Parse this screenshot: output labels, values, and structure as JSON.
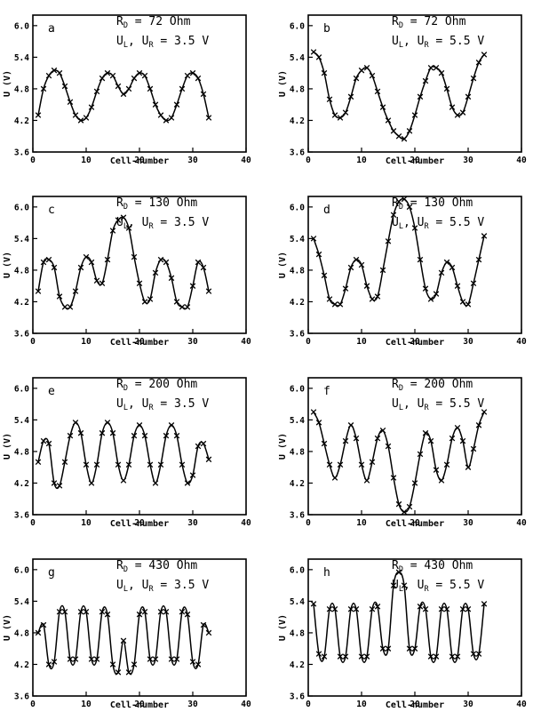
{
  "chart_data": [
    {
      "type": "line",
      "panel": "a",
      "annotation": {
        "r_prefix": "R",
        "r_sub": "D",
        "r_value": "= 72 Ohm",
        "u_prefix": "U",
        "u_sub1": "L",
        "u_sep": ", U",
        "u_sub2": "R",
        "u_value": "= 3.5 V"
      },
      "xlabel": "Cell-number",
      "ylabel": "U (V)",
      "xlim": [
        0,
        40
      ],
      "ylim": [
        3.6,
        6.2
      ],
      "xticks": [
        0,
        10,
        20,
        30,
        40
      ],
      "yticks": [
        3.6,
        4.2,
        4.8,
        5.4,
        6.0
      ],
      "series": [
        {
          "x": [
            1,
            2,
            3,
            4,
            5,
            6,
            7,
            8,
            9,
            10,
            11,
            12,
            13,
            14,
            15,
            16,
            17,
            18,
            19,
            20,
            21,
            22,
            23,
            24,
            25,
            26,
            27,
            28,
            29,
            30,
            31,
            32,
            33
          ],
          "y": [
            4.3,
            4.8,
            5.05,
            5.15,
            5.1,
            4.85,
            4.55,
            4.3,
            4.2,
            4.25,
            4.45,
            4.75,
            5.0,
            5.1,
            5.05,
            4.85,
            4.7,
            4.8,
            5.0,
            5.1,
            5.05,
            4.8,
            4.5,
            4.3,
            4.2,
            4.25,
            4.5,
            4.8,
            5.05,
            5.1,
            5.0,
            4.7,
            4.25
          ]
        }
      ]
    },
    {
      "type": "line",
      "panel": "b",
      "annotation": {
        "r_prefix": "R",
        "r_sub": "D",
        "r_value": "= 72 Ohm",
        "u_prefix": "U",
        "u_sub1": "L",
        "u_sep": ", U",
        "u_sub2": "R",
        "u_value": "= 5.5 V"
      },
      "xlabel": "Cell-number",
      "ylabel": "U (V)",
      "xlim": [
        0,
        40
      ],
      "ylim": [
        3.6,
        6.2
      ],
      "xticks": [
        0,
        10,
        20,
        30,
        40
      ],
      "yticks": [
        3.6,
        4.2,
        4.8,
        5.4,
        6.0
      ],
      "series": [
        {
          "x": [
            1,
            2,
            3,
            4,
            5,
            6,
            7,
            8,
            9,
            10,
            11,
            12,
            13,
            14,
            15,
            16,
            17,
            18,
            19,
            20,
            21,
            22,
            23,
            24,
            25,
            26,
            27,
            28,
            29,
            30,
            31,
            32,
            33
          ],
          "y": [
            5.5,
            5.4,
            5.1,
            4.6,
            4.3,
            4.25,
            4.35,
            4.65,
            5.0,
            5.15,
            5.2,
            5.05,
            4.75,
            4.45,
            4.2,
            4.0,
            3.9,
            3.85,
            4.0,
            4.3,
            4.65,
            4.95,
            5.2,
            5.2,
            5.1,
            4.8,
            4.45,
            4.3,
            4.35,
            4.65,
            5.0,
            5.3,
            5.45
          ]
        }
      ]
    },
    {
      "type": "line",
      "panel": "c",
      "annotation": {
        "r_prefix": "R",
        "r_sub": "D",
        "r_value": "= 130 Ohm",
        "u_prefix": "U",
        "u_sub1": "L",
        "u_sep": ", U",
        "u_sub2": "R",
        "u_value": "= 3.5 V"
      },
      "xlabel": "Cell-number",
      "ylabel": "U (V)",
      "xlim": [
        0,
        40
      ],
      "ylim": [
        3.6,
        6.2
      ],
      "xticks": [
        0,
        10,
        20,
        30,
        40
      ],
      "yticks": [
        3.6,
        4.2,
        4.8,
        5.4,
        6.0
      ],
      "series": [
        {
          "x": [
            1,
            2,
            3,
            4,
            5,
            6,
            7,
            8,
            9,
            10,
            11,
            12,
            13,
            14,
            15,
            16,
            17,
            18,
            19,
            20,
            21,
            22,
            23,
            24,
            25,
            26,
            27,
            28,
            29,
            30,
            31,
            32,
            33
          ],
          "y": [
            4.4,
            4.95,
            5.0,
            4.85,
            4.3,
            4.1,
            4.1,
            4.4,
            4.85,
            5.05,
            4.95,
            4.6,
            4.55,
            5.0,
            5.55,
            5.75,
            5.8,
            5.6,
            5.05,
            4.55,
            4.2,
            4.25,
            4.75,
            5.0,
            4.95,
            4.65,
            4.2,
            4.1,
            4.1,
            4.5,
            4.95,
            4.85,
            4.4
          ]
        }
      ]
    },
    {
      "type": "line",
      "panel": "d",
      "annotation": {
        "r_prefix": "R",
        "r_sub": "D",
        "r_value": "= 130 Ohm",
        "u_prefix": "U",
        "u_sub1": "L",
        "u_sep": ", U",
        "u_sub2": "R",
        "u_value": "= 5.5 V"
      },
      "xlabel": "Cell-number",
      "ylabel": "U (V)",
      "xlim": [
        0,
        40
      ],
      "ylim": [
        3.6,
        6.2
      ],
      "xticks": [
        0,
        10,
        20,
        30,
        40
      ],
      "yticks": [
        3.6,
        4.2,
        4.8,
        5.4,
        6.0
      ],
      "series": [
        {
          "x": [
            1,
            2,
            3,
            4,
            5,
            6,
            7,
            8,
            9,
            10,
            11,
            12,
            13,
            14,
            15,
            16,
            17,
            18,
            19,
            20,
            21,
            22,
            23,
            24,
            25,
            26,
            27,
            28,
            29,
            30,
            31,
            32,
            33
          ],
          "y": [
            5.4,
            5.1,
            4.7,
            4.25,
            4.15,
            4.15,
            4.45,
            4.85,
            5.0,
            4.9,
            4.5,
            4.25,
            4.3,
            4.8,
            5.35,
            5.85,
            6.1,
            6.15,
            6.0,
            5.6,
            5.0,
            4.45,
            4.25,
            4.35,
            4.75,
            4.95,
            4.85,
            4.5,
            4.2,
            4.15,
            4.55,
            5.0,
            5.45
          ]
        }
      ]
    },
    {
      "type": "line",
      "panel": "e",
      "annotation": {
        "r_prefix": "R",
        "r_sub": "D",
        "r_value": "= 200 Ohm",
        "u_prefix": "U",
        "u_sub1": "L",
        "u_sep": ", U",
        "u_sub2": "R",
        "u_value": "= 3.5 V"
      },
      "xlabel": "Cell-number",
      "ylabel": "U (V)",
      "xlim": [
        0,
        40
      ],
      "ylim": [
        3.6,
        6.2
      ],
      "xticks": [
        0,
        10,
        20,
        30,
        40
      ],
      "yticks": [
        3.6,
        4.2,
        4.8,
        5.4,
        6.0
      ],
      "series": [
        {
          "x": [
            1,
            2,
            3,
            4,
            5,
            6,
            7,
            8,
            9,
            10,
            11,
            12,
            13,
            14,
            15,
            16,
            17,
            18,
            19,
            20,
            21,
            22,
            23,
            24,
            25,
            26,
            27,
            28,
            29,
            30,
            31,
            32,
            33
          ],
          "y": [
            4.6,
            5.0,
            4.95,
            4.2,
            4.15,
            4.6,
            5.1,
            5.35,
            5.15,
            4.55,
            4.2,
            4.55,
            5.15,
            5.35,
            5.15,
            4.55,
            4.25,
            4.55,
            5.1,
            5.3,
            5.1,
            4.55,
            4.2,
            4.55,
            5.1,
            5.3,
            5.1,
            4.55,
            4.2,
            4.35,
            4.9,
            4.95,
            4.65
          ]
        }
      ]
    },
    {
      "type": "line",
      "panel": "f",
      "annotation": {
        "r_prefix": "R",
        "r_sub": "D",
        "r_value": "= 200 Ohm",
        "u_prefix": "U",
        "u_sub1": "L",
        "u_sep": ", U",
        "u_sub2": "R",
        "u_value": "= 5.5 V"
      },
      "xlabel": "Cell-number",
      "ylabel": "U (V)",
      "xlim": [
        0,
        40
      ],
      "ylim": [
        3.6,
        6.2
      ],
      "xticks": [
        0,
        10,
        20,
        30,
        40
      ],
      "yticks": [
        3.6,
        4.2,
        4.8,
        5.4,
        6.0
      ],
      "series": [
        {
          "x": [
            1,
            2,
            3,
            4,
            5,
            6,
            7,
            8,
            9,
            10,
            11,
            12,
            13,
            14,
            15,
            16,
            17,
            18,
            19,
            20,
            21,
            22,
            23,
            24,
            25,
            26,
            27,
            28,
            29,
            30,
            31,
            32,
            33
          ],
          "y": [
            5.55,
            5.35,
            4.95,
            4.55,
            4.3,
            4.55,
            5.0,
            5.3,
            5.05,
            4.55,
            4.25,
            4.6,
            5.05,
            5.2,
            4.9,
            4.3,
            3.8,
            3.65,
            3.75,
            4.2,
            4.75,
            5.15,
            5.0,
            4.45,
            4.25,
            4.55,
            5.05,
            5.25,
            5.0,
            4.5,
            4.85,
            5.3,
            5.55
          ]
        }
      ]
    },
    {
      "type": "line",
      "panel": "g",
      "annotation": {
        "r_prefix": "R",
        "r_sub": "D",
        "r_value": "= 430 Ohm",
        "u_prefix": "U",
        "u_sub1": "L",
        "u_sep": ", U",
        "u_sub2": "R",
        "u_value": "= 3.5 V"
      },
      "xlabel": "Cell-number",
      "ylabel": "U (V)",
      "xlim": [
        0,
        40
      ],
      "ylim": [
        3.6,
        6.2
      ],
      "xticks": [
        0,
        10,
        20,
        30,
        40
      ],
      "yticks": [
        3.6,
        4.2,
        4.8,
        5.4,
        6.0
      ],
      "series": [
        {
          "x": [
            1,
            2,
            3,
            4,
            5,
            6,
            7,
            8,
            9,
            10,
            11,
            12,
            13,
            14,
            15,
            16,
            17,
            18,
            19,
            20,
            21,
            22,
            23,
            24,
            25,
            26,
            27,
            28,
            29,
            30,
            31,
            32,
            33
          ],
          "y": [
            4.8,
            4.95,
            4.2,
            4.25,
            5.2,
            5.2,
            4.3,
            4.3,
            5.2,
            5.2,
            4.3,
            4.3,
            5.2,
            5.15,
            4.2,
            4.05,
            4.65,
            4.05,
            4.2,
            5.15,
            5.2,
            4.3,
            4.3,
            5.2,
            5.2,
            4.3,
            4.3,
            5.2,
            5.15,
            4.25,
            4.2,
            4.95,
            4.8
          ]
        }
      ]
    },
    {
      "type": "line",
      "panel": "h",
      "annotation": {
        "r_prefix": "R",
        "r_sub": "D",
        "r_value": "= 430 Ohm",
        "u_prefix": "U",
        "u_sub1": "L",
        "u_sep": ", U",
        "u_sub2": "R",
        "u_value": "= 5.5 V"
      },
      "xlabel": "Cell-number",
      "ylabel": "U (V)",
      "xlim": [
        0,
        40
      ],
      "ylim": [
        3.6,
        6.2
      ],
      "xticks": [
        0,
        10,
        20,
        30,
        40
      ],
      "yticks": [
        3.6,
        4.2,
        4.8,
        5.4,
        6.0
      ],
      "series": [
        {
          "x": [
            1,
            2,
            3,
            4,
            5,
            6,
            7,
            8,
            9,
            10,
            11,
            12,
            13,
            14,
            15,
            16,
            17,
            18,
            19,
            20,
            21,
            22,
            23,
            24,
            25,
            26,
            27,
            28,
            29,
            30,
            31,
            32,
            33
          ],
          "y": [
            5.35,
            4.4,
            4.35,
            5.25,
            5.25,
            4.35,
            4.35,
            5.25,
            5.25,
            4.35,
            4.35,
            5.25,
            5.3,
            4.5,
            4.5,
            5.7,
            5.95,
            5.7,
            4.5,
            4.5,
            5.3,
            5.25,
            4.35,
            4.35,
            5.25,
            5.25,
            4.35,
            4.35,
            5.25,
            5.25,
            4.4,
            4.4,
            5.35
          ]
        }
      ]
    }
  ]
}
